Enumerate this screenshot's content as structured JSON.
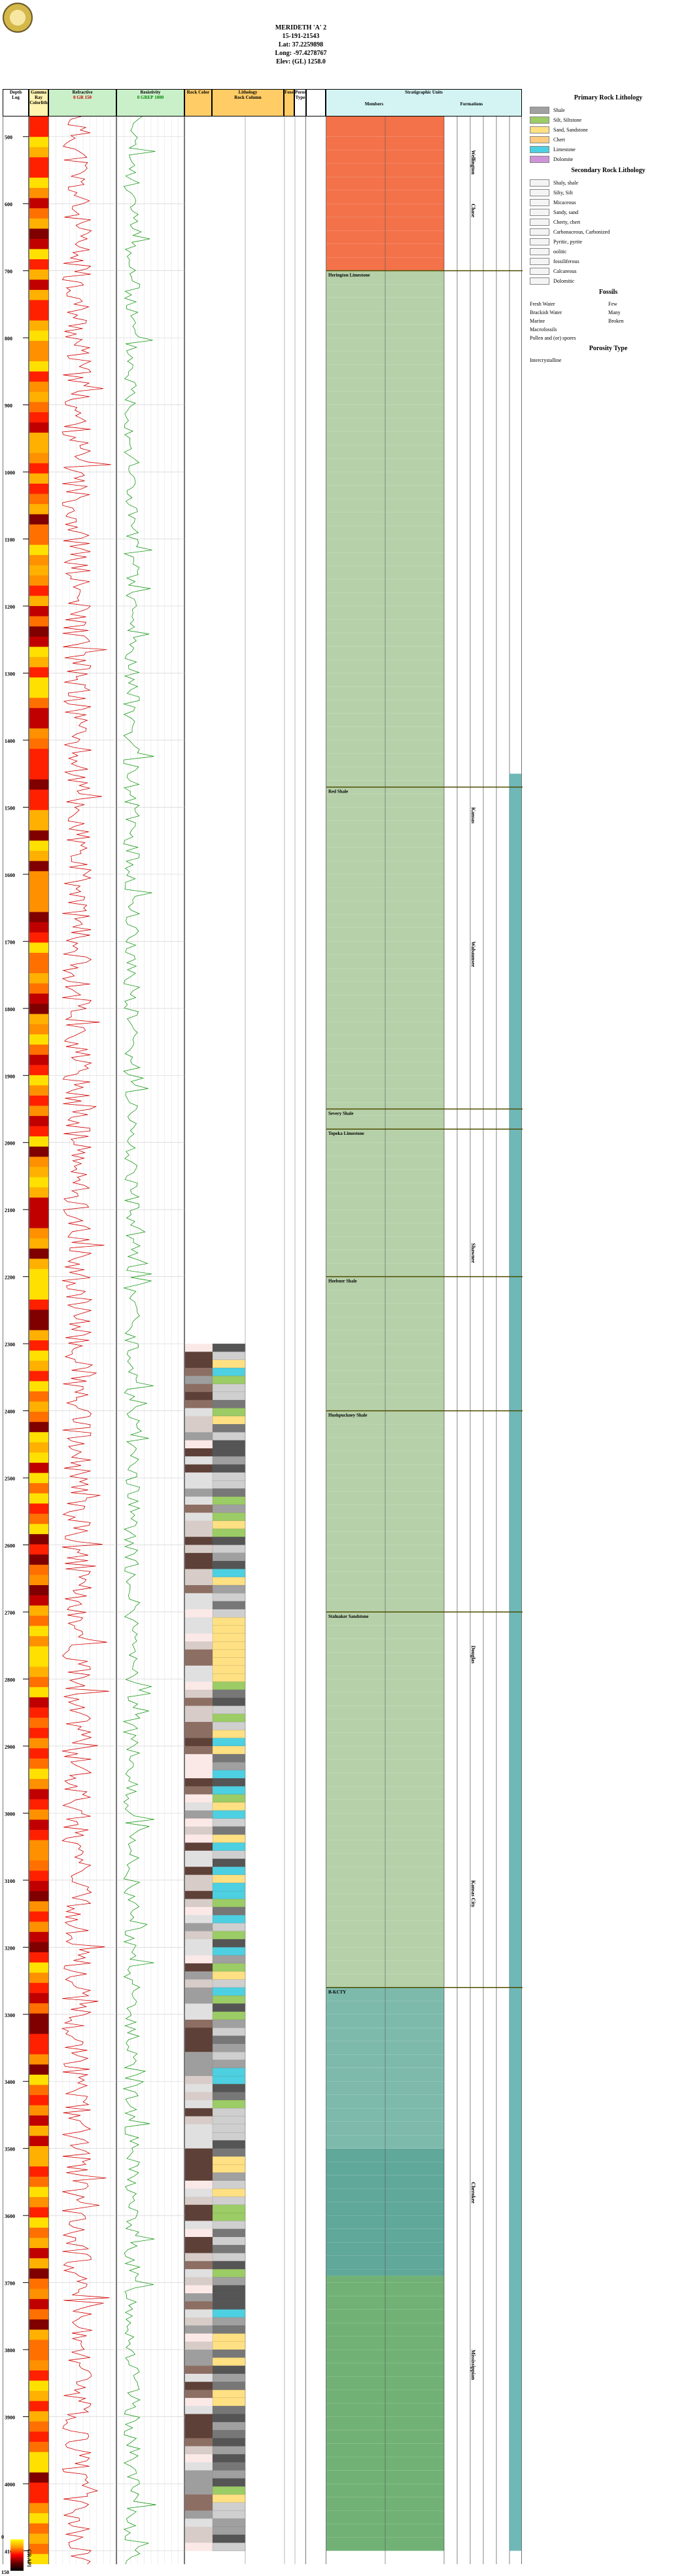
{
  "well": {
    "name": "MERIDETH 'A' 2",
    "api": "15-191-21543",
    "lat": "Lat: 37.2259898",
    "long": "Long: -97.4278767",
    "elev": "Elev: (GL) 1258.0"
  },
  "columns": {
    "depth": "Depth",
    "log": "Log",
    "gamma": "Gamma Ray Colorlith",
    "refractive": "Refractive",
    "gr": "GR",
    "gr_min": "0",
    "gr_max": "150",
    "resistivity": "Resistivity",
    "resist_label": "GREP",
    "resist_min": "0",
    "resist_max": "1000",
    "rock_color": "Rock Color",
    "lithology": "Lithology",
    "rock_column": "Rock Column",
    "fossils": "Fossils",
    "porosity_type": "Porosity Type",
    "strat_units": "Stratigraphic Units",
    "members": "Members",
    "formations": "Formations"
  },
  "depth_ticks": [
    "500",
    "600",
    "700",
    "800",
    "900",
    "1000",
    "1100",
    "1200",
    "1300",
    "1400",
    "1500",
    "1600",
    "1700",
    "1800",
    "1900",
    "2000",
    "2100",
    "2200",
    "2300",
    "2400",
    "2500",
    "2600",
    "2700",
    "2800",
    "2900",
    "3000",
    "3100",
    "3200",
    "3300",
    "3400",
    "3500",
    "3600",
    "3700",
    "3800",
    "3900",
    "4000",
    "4100"
  ],
  "strat_labels": {
    "members": [
      {
        "text": "Herington Limestone",
        "depth": 700
      },
      {
        "text": "Red Shale",
        "depth": 1470
      },
      {
        "text": "Severy Shale",
        "depth": 1950
      },
      {
        "text": "Topeka Limestone",
        "depth": 1980
      },
      {
        "text": "Heebner Shale",
        "depth": 2200
      },
      {
        "text": "Hushpuckney Shale",
        "depth": 2400
      },
      {
        "text": "Stalnaker Sandstone",
        "depth": 2700
      },
      {
        "text": "B-KCTY",
        "depth": 3260
      }
    ],
    "formations": [
      {
        "text": "Chase",
        "depth": 600
      },
      {
        "text": "Wellington",
        "depth": 520
      },
      {
        "text": "Kansas",
        "depth": 1500
      },
      {
        "text": "Wabaunsee",
        "depth": 1700
      },
      {
        "text": "Shawnee",
        "depth": 2150
      },
      {
        "text": "Douglas",
        "depth": 2750
      },
      {
        "text": "Kansas City",
        "depth": 3100
      },
      {
        "text": "Cherokee",
        "depth": 3550
      },
      {
        "text": "Mississippian",
        "depth": 3800
      }
    ]
  },
  "legend": {
    "primary_title": "Primary Rock Lithology",
    "primary": [
      {
        "label": "Shale",
        "color": "#a0a0a0"
      },
      {
        "label": "Silt, Siltstone",
        "color": "#9ccc65"
      },
      {
        "label": "Sand, Sandstone",
        "color": "#ffe082"
      },
      {
        "label": "Chert",
        "color": "#ffcc80"
      },
      {
        "label": "Limestone",
        "color": "#4dd0e1"
      },
      {
        "label": "Dolomite",
        "color": "#ce93d8"
      }
    ],
    "secondary_title": "Secondary Rock Lithology",
    "secondary": [
      "Shaly, shale",
      "Silty, Silt",
      "Micaceous",
      "Sandy, sand",
      "Cherty, chert",
      "Carbonaceous, Carbonized",
      "Pyritic, pyrite",
      "oolitic",
      "fossiliferous",
      "Calcareous",
      "Dolomitic"
    ],
    "fossils_title": "Fossils",
    "fossils": [
      [
        "Fresh Water",
        "Few"
      ],
      [
        "Brackish Water",
        "Many"
      ],
      [
        "Marine",
        "Broken"
      ]
    ],
    "fossil_extra": [
      "Macrofossils",
      "Pollen and (or) spores"
    ],
    "porosity_title": "Porosity Type",
    "porosity": [
      "Intercrystalline"
    ]
  },
  "scale": {
    "top": "0",
    "bottom": "150",
    "label": "GR API"
  }
}
